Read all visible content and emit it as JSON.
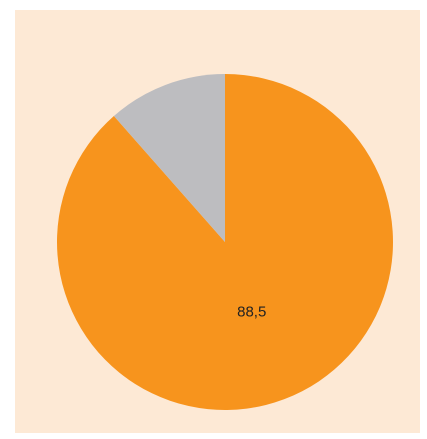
{
  "colors": {
    "panel_background": "#fde9d5",
    "primary_slice": "#f7941d",
    "secondary_slice": "#bdbdc0",
    "label_text": "#222222"
  },
  "chart_data": {
    "type": "pie",
    "start": "12 o'clock",
    "direction": "clockwise",
    "slices": [
      {
        "value": 88.5,
        "label": "88,5",
        "color": "#f7941d"
      },
      {
        "value": 11.5,
        "label": "",
        "color": "#bdbdc0"
      }
    ],
    "title": "",
    "legend": "none"
  }
}
